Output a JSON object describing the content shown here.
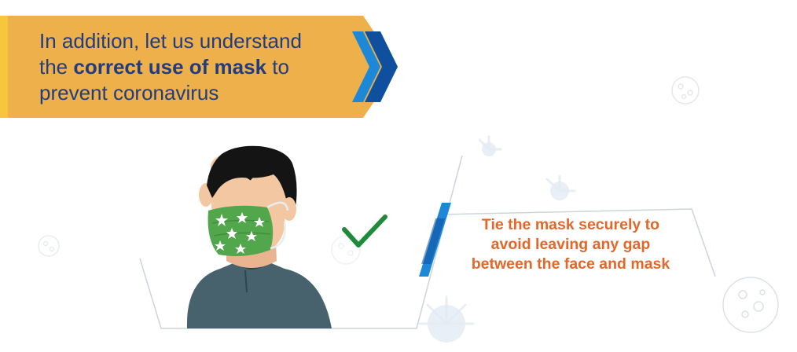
{
  "banner": {
    "line1": "In addition, let us understand",
    "line2_prefix": "the",
    "line2_bold": "correct use of mask",
    "line2_suffix": "to",
    "line3": "prevent coronavirus"
  },
  "instruction": {
    "lines": [
      "Tie the mask securely to",
      "avoid leaving any gap",
      "between the face and mask"
    ]
  },
  "icons": {
    "checkmark": "check-icon",
    "virus": "virus-icon",
    "person": "person-with-mask-illustration"
  },
  "colors": {
    "banner_yellow": "#edb04a",
    "banner_stripe": "#f8c63a",
    "chevron_blue": "#0e4f9e",
    "chevron_light": "#1e88d8",
    "banner_text": "#233c7f",
    "caption_orange": "#e4672a",
    "check_green": "#1f8a3c",
    "mask_green": "#52a64b",
    "shirt": "#48626d",
    "skin": "#f2c7a2",
    "hair": "#141414"
  }
}
